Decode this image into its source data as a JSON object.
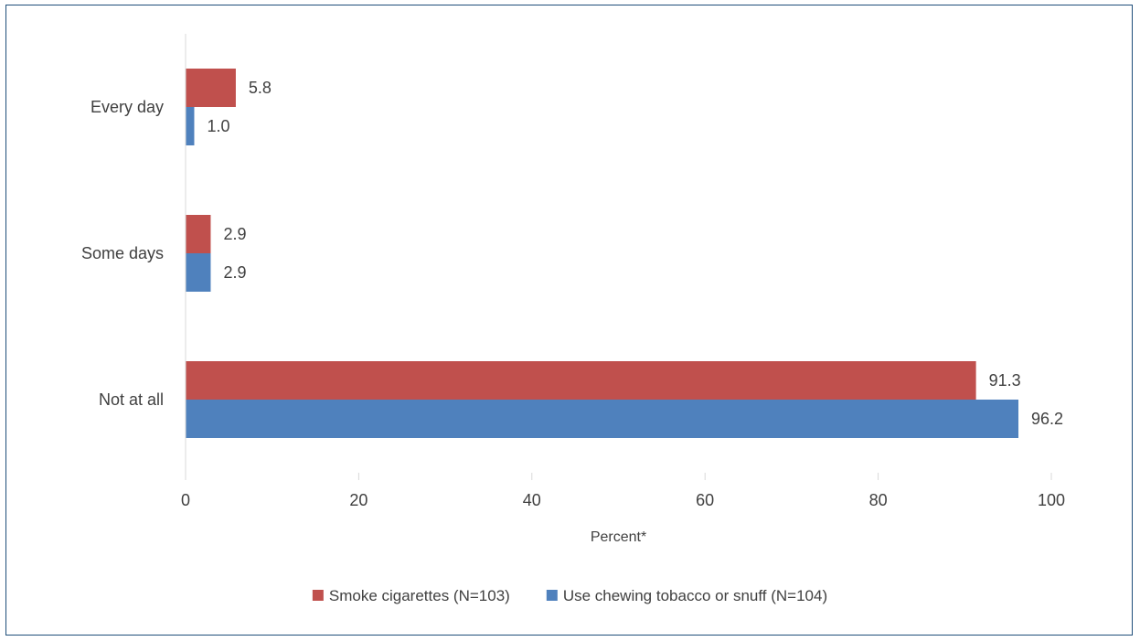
{
  "chart_data": {
    "type": "bar",
    "orientation": "horizontal",
    "categories": [
      "Every day",
      "Some days",
      "Not at all"
    ],
    "series": [
      {
        "name": "Smoke cigarettes (N=103)",
        "color": "#c0504d",
        "values": [
          5.8,
          2.9,
          91.3
        ],
        "labels": [
          "5.8",
          "2.9",
          "91.3"
        ]
      },
      {
        "name": "Use chewing tobacco or snuff (N=104)",
        "color": "#4f81bd",
        "values": [
          1.0,
          2.9,
          96.2
        ],
        "labels": [
          "1.0",
          "2.9",
          "96.2"
        ]
      }
    ],
    "title": "",
    "xlabel": "Percent*",
    "ylabel": "",
    "xlim": [
      0,
      100
    ],
    "xticks": [
      "0",
      "20",
      "40",
      "60",
      "80",
      "100"
    ],
    "grid": false,
    "legend_position": "bottom"
  }
}
